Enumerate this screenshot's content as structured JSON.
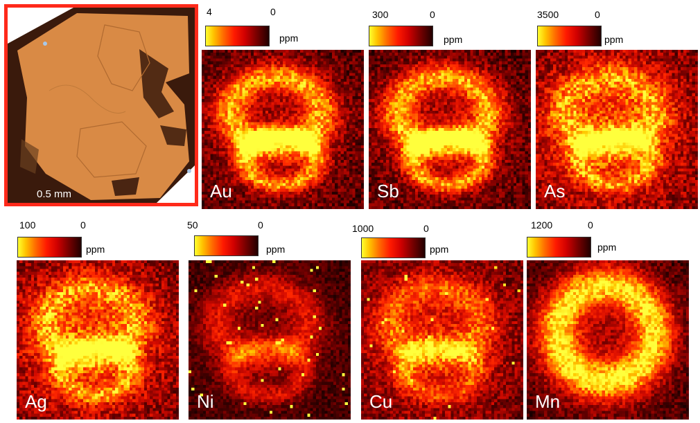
{
  "micrograph": {
    "scale_label": "0.5 mm"
  },
  "maps": [
    {
      "element": "Au",
      "max": "4",
      "min": "0",
      "unit": "ppm",
      "pattern": "ring"
    },
    {
      "element": "Sb",
      "max": "300",
      "min": "0",
      "unit": "ppm",
      "pattern": "ring"
    },
    {
      "element": "As",
      "max": "3500",
      "min": "0",
      "unit": "ppm",
      "pattern": "bright"
    },
    {
      "element": "Ag",
      "max": "100",
      "min": "0",
      "unit": "ppm",
      "pattern": "bright"
    },
    {
      "element": "Ni",
      "max": "50",
      "min": "0",
      "unit": "ppm",
      "pattern": "dark"
    },
    {
      "element": "Cu",
      "max": "1000",
      "min": "0",
      "unit": "ppm",
      "pattern": "mid"
    },
    {
      "element": "Mn",
      "max": "1200",
      "min": "0",
      "unit": "ppm",
      "pattern": "bigring"
    }
  ],
  "colors": {
    "frame": "#ff2a1a",
    "mineral": "#d98a45",
    "matrix": "#3a1a0c"
  }
}
